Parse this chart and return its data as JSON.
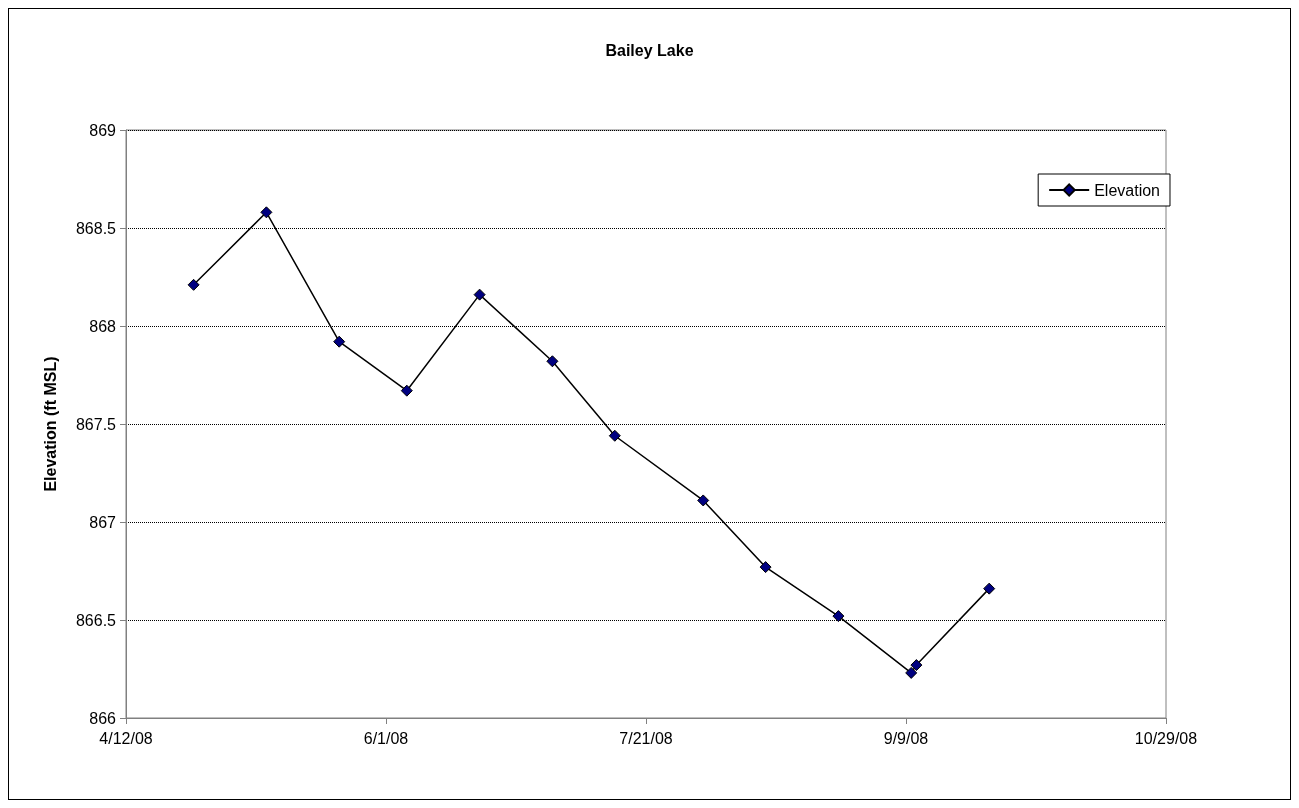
{
  "chart_data": {
    "type": "line",
    "title": "Bailey Lake",
    "ylabel": "Elevation (ft MSL)",
    "x": [
      "2008-04-25",
      "2008-05-09",
      "2008-05-23",
      "2008-06-05",
      "2008-06-19",
      "2008-07-03",
      "2008-07-15",
      "2008-08-01",
      "2008-08-13",
      "2008-08-27",
      "2008-09-10",
      "2008-09-11",
      "2008-09-25"
    ],
    "series": [
      {
        "name": "Elevation",
        "color": "#000080",
        "values": [
          868.21,
          868.58,
          867.92,
          867.67,
          868.16,
          867.82,
          867.44,
          867.11,
          866.77,
          866.52,
          866.23,
          866.27,
          866.66
        ]
      }
    ],
    "xlim": [
      "2008-04-12",
      "2008-10-29"
    ],
    "xticks": [
      {
        "value": "2008-04-12",
        "label": "4/12/08"
      },
      {
        "value": "2008-06-01",
        "label": "6/1/08"
      },
      {
        "value": "2008-07-21",
        "label": "7/21/08"
      },
      {
        "value": "2008-09-09",
        "label": "9/9/08"
      },
      {
        "value": "2008-10-29",
        "label": "10/29/08"
      }
    ],
    "ylim": [
      866,
      869
    ],
    "yticks": [
      866,
      866.5,
      867,
      867.5,
      868,
      868.5,
      869
    ],
    "grid": "y",
    "legend": "top right",
    "marker": "diamond",
    "line_style": "solid"
  }
}
